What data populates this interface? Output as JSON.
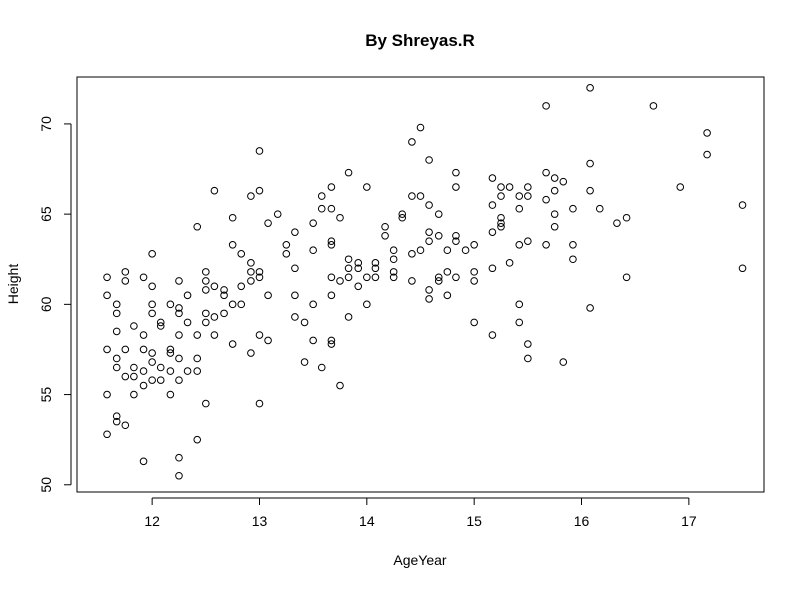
{
  "chart_data": {
    "type": "scatter",
    "title": "By Shreyas.R",
    "xlabel": "AgeYear",
    "ylabel": "Height",
    "xlim": [
      11.3,
      17.7
    ],
    "ylim": [
      49.6,
      72.6
    ],
    "xticks": [
      12,
      13,
      14,
      15,
      16,
      17
    ],
    "yticks": [
      50,
      55,
      60,
      65,
      70
    ],
    "grid": false,
    "marker": "open-circle",
    "colors": {
      "marker": "#000000",
      "axis": "#000000",
      "background": "#ffffff"
    },
    "points": [
      [
        11.58,
        52.8
      ],
      [
        11.58,
        55.0
      ],
      [
        11.58,
        57.5
      ],
      [
        11.58,
        60.5
      ],
      [
        11.58,
        61.5
      ],
      [
        11.67,
        53.5
      ],
      [
        11.67,
        53.8
      ],
      [
        11.67,
        56.5
      ],
      [
        11.67,
        57.0
      ],
      [
        11.67,
        58.5
      ],
      [
        11.67,
        59.5
      ],
      [
        11.67,
        60.0
      ],
      [
        11.75,
        53.3
      ],
      [
        11.75,
        56.0
      ],
      [
        11.75,
        57.5
      ],
      [
        11.75,
        61.3
      ],
      [
        11.75,
        61.8
      ],
      [
        11.83,
        55.0
      ],
      [
        11.83,
        56.0
      ],
      [
        11.83,
        56.5
      ],
      [
        11.83,
        58.8
      ],
      [
        11.92,
        51.3
      ],
      [
        11.92,
        55.5
      ],
      [
        11.92,
        56.3
      ],
      [
        11.92,
        57.5
      ],
      [
        11.92,
        58.3
      ],
      [
        11.92,
        61.5
      ],
      [
        12.0,
        55.8
      ],
      [
        12.0,
        56.8
      ],
      [
        12.0,
        57.3
      ],
      [
        12.0,
        59.5
      ],
      [
        12.0,
        60.0
      ],
      [
        12.0,
        61.0
      ],
      [
        12.0,
        62.8
      ],
      [
        12.08,
        55.8
      ],
      [
        12.08,
        56.5
      ],
      [
        12.08,
        58.8
      ],
      [
        12.08,
        59.0
      ],
      [
        12.17,
        55.0
      ],
      [
        12.17,
        56.3
      ],
      [
        12.17,
        57.3
      ],
      [
        12.17,
        57.5
      ],
      [
        12.17,
        60.0
      ],
      [
        12.25,
        50.5
      ],
      [
        12.25,
        51.5
      ],
      [
        12.25,
        55.8
      ],
      [
        12.25,
        57.0
      ],
      [
        12.25,
        58.3
      ],
      [
        12.25,
        59.5
      ],
      [
        12.25,
        59.8
      ],
      [
        12.25,
        61.3
      ],
      [
        12.33,
        56.3
      ],
      [
        12.33,
        59.0
      ],
      [
        12.33,
        60.5
      ],
      [
        12.42,
        52.5
      ],
      [
        12.42,
        56.3
      ],
      [
        12.42,
        57.0
      ],
      [
        12.42,
        58.3
      ],
      [
        12.42,
        64.3
      ],
      [
        12.5,
        54.5
      ],
      [
        12.5,
        59.0
      ],
      [
        12.5,
        59.5
      ],
      [
        12.5,
        60.8
      ],
      [
        12.5,
        61.3
      ],
      [
        12.5,
        61.8
      ],
      [
        12.58,
        58.3
      ],
      [
        12.58,
        59.3
      ],
      [
        12.58,
        61.0
      ],
      [
        12.58,
        66.3
      ],
      [
        12.67,
        59.5
      ],
      [
        12.67,
        60.5
      ],
      [
        12.67,
        60.8
      ],
      [
        12.75,
        57.8
      ],
      [
        12.75,
        60.0
      ],
      [
        12.75,
        63.3
      ],
      [
        12.75,
        64.8
      ],
      [
        12.83,
        60.0
      ],
      [
        12.83,
        61.0
      ],
      [
        12.83,
        62.8
      ],
      [
        12.92,
        57.3
      ],
      [
        12.92,
        61.3
      ],
      [
        12.92,
        61.8
      ],
      [
        12.92,
        62.3
      ],
      [
        12.92,
        66.0
      ],
      [
        13.0,
        54.5
      ],
      [
        13.0,
        58.3
      ],
      [
        13.0,
        61.5
      ],
      [
        13.0,
        61.8
      ],
      [
        13.0,
        66.3
      ],
      [
        13.0,
        68.5
      ],
      [
        13.08,
        58.0
      ],
      [
        13.08,
        60.5
      ],
      [
        13.08,
        64.5
      ],
      [
        13.17,
        65.0
      ],
      [
        13.25,
        62.8
      ],
      [
        13.25,
        63.3
      ],
      [
        13.33,
        59.3
      ],
      [
        13.33,
        60.5
      ],
      [
        13.33,
        62.0
      ],
      [
        13.33,
        64.0
      ],
      [
        13.42,
        56.8
      ],
      [
        13.42,
        59.0
      ],
      [
        13.5,
        58.0
      ],
      [
        13.5,
        60.0
      ],
      [
        13.5,
        63.0
      ],
      [
        13.5,
        64.5
      ],
      [
        13.58,
        56.5
      ],
      [
        13.58,
        65.3
      ],
      [
        13.58,
        66.0
      ],
      [
        13.67,
        57.8
      ],
      [
        13.67,
        58.0
      ],
      [
        13.67,
        60.5
      ],
      [
        13.67,
        61.5
      ],
      [
        13.67,
        63.3
      ],
      [
        13.67,
        63.5
      ],
      [
        13.67,
        65.3
      ],
      [
        13.67,
        66.5
      ],
      [
        13.75,
        55.5
      ],
      [
        13.75,
        61.3
      ],
      [
        13.75,
        64.8
      ],
      [
        13.83,
        59.3
      ],
      [
        13.83,
        61.5
      ],
      [
        13.83,
        62.0
      ],
      [
        13.83,
        62.5
      ],
      [
        13.83,
        67.3
      ],
      [
        13.92,
        61.0
      ],
      [
        13.92,
        62.0
      ],
      [
        13.92,
        62.3
      ],
      [
        14.0,
        60.0
      ],
      [
        14.0,
        61.5
      ],
      [
        14.0,
        66.5
      ],
      [
        14.08,
        61.5
      ],
      [
        14.08,
        62.0
      ],
      [
        14.08,
        62.3
      ],
      [
        14.17,
        63.8
      ],
      [
        14.17,
        64.3
      ],
      [
        14.25,
        61.5
      ],
      [
        14.25,
        61.8
      ],
      [
        14.25,
        62.5
      ],
      [
        14.25,
        63.0
      ],
      [
        14.33,
        64.8
      ],
      [
        14.33,
        65.0
      ],
      [
        14.42,
        61.3
      ],
      [
        14.42,
        62.8
      ],
      [
        14.42,
        66.0
      ],
      [
        14.42,
        69.0
      ],
      [
        14.5,
        63.0
      ],
      [
        14.5,
        66.0
      ],
      [
        14.5,
        69.8
      ],
      [
        14.58,
        60.3
      ],
      [
        14.58,
        60.8
      ],
      [
        14.58,
        63.5
      ],
      [
        14.58,
        64.0
      ],
      [
        14.58,
        65.5
      ],
      [
        14.58,
        68.0
      ],
      [
        14.67,
        61.3
      ],
      [
        14.67,
        61.5
      ],
      [
        14.67,
        63.8
      ],
      [
        14.67,
        65.0
      ],
      [
        14.75,
        60.5
      ],
      [
        14.75,
        61.8
      ],
      [
        14.75,
        63.0
      ],
      [
        14.83,
        61.5
      ],
      [
        14.83,
        63.5
      ],
      [
        14.83,
        63.8
      ],
      [
        14.83,
        66.5
      ],
      [
        14.83,
        67.3
      ],
      [
        14.92,
        63.0
      ],
      [
        15.0,
        59.0
      ],
      [
        15.0,
        61.3
      ],
      [
        15.0,
        61.8
      ],
      [
        15.0,
        63.3
      ],
      [
        15.17,
        58.3
      ],
      [
        15.17,
        62.0
      ],
      [
        15.17,
        64.0
      ],
      [
        15.17,
        65.5
      ],
      [
        15.17,
        67.0
      ],
      [
        15.25,
        64.3
      ],
      [
        15.25,
        64.5
      ],
      [
        15.25,
        64.8
      ],
      [
        15.25,
        66.0
      ],
      [
        15.25,
        66.5
      ],
      [
        15.33,
        62.3
      ],
      [
        15.33,
        66.5
      ],
      [
        15.42,
        59.0
      ],
      [
        15.42,
        60.0
      ],
      [
        15.42,
        63.3
      ],
      [
        15.42,
        65.3
      ],
      [
        15.42,
        66.0
      ],
      [
        15.5,
        57.0
      ],
      [
        15.5,
        57.8
      ],
      [
        15.5,
        63.5
      ],
      [
        15.5,
        66.0
      ],
      [
        15.5,
        66.5
      ],
      [
        15.67,
        63.3
      ],
      [
        15.67,
        65.8
      ],
      [
        15.67,
        67.3
      ],
      [
        15.67,
        71.0
      ],
      [
        15.75,
        64.3
      ],
      [
        15.75,
        65.0
      ],
      [
        15.75,
        66.3
      ],
      [
        15.75,
        67.0
      ],
      [
        15.83,
        56.8
      ],
      [
        15.83,
        66.8
      ],
      [
        15.92,
        62.5
      ],
      [
        15.92,
        63.3
      ],
      [
        15.92,
        65.3
      ],
      [
        16.08,
        59.8
      ],
      [
        16.08,
        66.3
      ],
      [
        16.08,
        67.8
      ],
      [
        16.08,
        72.0
      ],
      [
        16.17,
        65.3
      ],
      [
        16.33,
        64.5
      ],
      [
        16.42,
        61.5
      ],
      [
        16.42,
        64.8
      ],
      [
        16.67,
        71.0
      ],
      [
        16.92,
        66.5
      ],
      [
        17.17,
        68.3
      ],
      [
        17.17,
        69.5
      ],
      [
        17.5,
        62.0
      ],
      [
        17.5,
        65.5
      ]
    ]
  }
}
